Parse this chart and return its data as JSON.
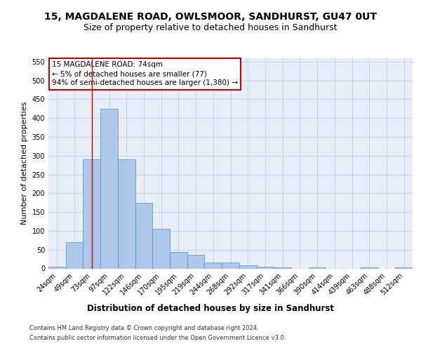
{
  "title": "15, MAGDALENE ROAD, OWLSMOOR, SANDHURST, GU47 0UT",
  "subtitle": "Size of property relative to detached houses in Sandhurst",
  "xlabel": "Distribution of detached houses by size in Sandhurst",
  "ylabel": "Number of detached properties",
  "bar_labels": [
    "24sqm",
    "49sqm",
    "73sqm",
    "97sqm",
    "122sqm",
    "146sqm",
    "170sqm",
    "195sqm",
    "219sqm",
    "244sqm",
    "268sqm",
    "292sqm",
    "317sqm",
    "341sqm",
    "366sqm",
    "390sqm",
    "414sqm",
    "439sqm",
    "463sqm",
    "488sqm",
    "512sqm"
  ],
  "bar_values": [
    5,
    70,
    290,
    425,
    290,
    175,
    105,
    43,
    37,
    15,
    15,
    8,
    4,
    2,
    0,
    3,
    0,
    0,
    2,
    0,
    2
  ],
  "bar_color": "#aec6e8",
  "bar_edge_color": "#5b9bd5",
  "grid_color": "#c8d4e8",
  "background_color": "#e8eef8",
  "vline_x_index": 2,
  "vline_color": "#cc0000",
  "annotation_text": "15 MAGDALENE ROAD: 74sqm\n← 5% of detached houses are smaller (77)\n94% of semi-detached houses are larger (1,380) →",
  "annotation_box_color": "#cc0000",
  "annotation_bg_color": "#ffffff",
  "footer_line1": "Contains HM Land Registry data © Crown copyright and database right 2024.",
  "footer_line2": "Contains public sector information licensed under the Open Government Licence v3.0.",
  "ylim": [
    0,
    560
  ],
  "yticks": [
    0,
    50,
    100,
    150,
    200,
    250,
    300,
    350,
    400,
    450,
    500,
    550
  ],
  "title_fontsize": 10,
  "subtitle_fontsize": 9,
  "tick_fontsize": 7,
  "ylabel_fontsize": 8,
  "xlabel_fontsize": 8.5,
  "annotation_fontsize": 7.5,
  "footer_fontsize": 6
}
